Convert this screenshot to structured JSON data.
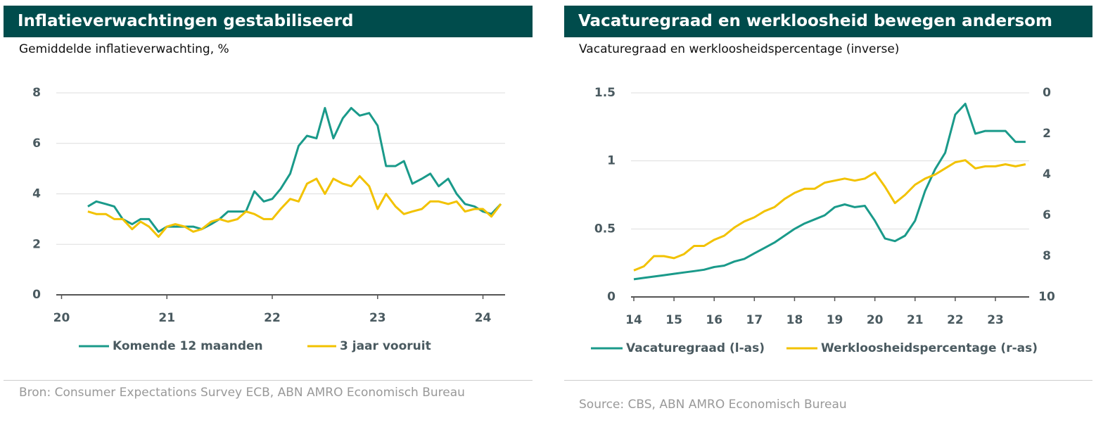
{
  "chart_data": [
    {
      "type": "line",
      "title": "Inflatieverwachtingen gestabiliseerd",
      "subtitle": "Gemiddelde inflatieverwachting, %",
      "source": "Bron: Consumer Expectations Survey ECB, ABN AMRO Economisch Bureau",
      "x": [
        20.25,
        20.33,
        20.42,
        20.5,
        20.58,
        20.67,
        20.75,
        20.83,
        20.92,
        21,
        21.08,
        21.17,
        21.25,
        21.33,
        21.42,
        21.5,
        21.58,
        21.67,
        21.75,
        21.83,
        21.92,
        22,
        22.08,
        22.17,
        22.25,
        22.33,
        22.42,
        22.5,
        22.58,
        22.67,
        22.75,
        22.83,
        22.92,
        23,
        23.08,
        23.17,
        23.25,
        23.33,
        23.42,
        23.5,
        23.58,
        23.67,
        23.75,
        23.83,
        23.92,
        24,
        24.08,
        24.17
      ],
      "xlim": [
        19.95,
        24.21
      ],
      "xticks": [
        20,
        21,
        22,
        23,
        24
      ],
      "ylim": [
        0,
        8
      ],
      "yticks": [
        0,
        2,
        4,
        6,
        8
      ],
      "grid": true,
      "series": [
        {
          "name": "Komende 12 maanden",
          "color": "#1a9a8a",
          "values": [
            3.5,
            3.7,
            3.6,
            3.5,
            3.0,
            2.8,
            3.0,
            3.0,
            2.5,
            2.7,
            2.7,
            2.7,
            2.7,
            2.6,
            2.8,
            3.0,
            3.3,
            3.3,
            3.3,
            4.1,
            3.7,
            3.8,
            4.2,
            4.8,
            5.9,
            6.3,
            6.2,
            7.4,
            6.2,
            7.0,
            7.4,
            7.1,
            7.2,
            6.7,
            5.1,
            5.1,
            5.3,
            4.4,
            4.6,
            4.8,
            4.3,
            4.6,
            4.0,
            3.6,
            3.5,
            3.3,
            3.2,
            3.6
          ]
        },
        {
          "name": "3 jaar vooruit",
          "color": "#f2c200",
          "values": [
            3.3,
            3.2,
            3.2,
            3.0,
            3.0,
            2.6,
            2.9,
            2.7,
            2.3,
            2.7,
            2.8,
            2.7,
            2.5,
            2.6,
            2.9,
            3.0,
            2.9,
            3.0,
            3.3,
            3.2,
            3.0,
            3.0,
            3.4,
            3.8,
            3.7,
            4.4,
            4.6,
            4.0,
            4.6,
            4.4,
            4.3,
            4.7,
            4.3,
            3.4,
            4.0,
            3.5,
            3.2,
            3.3,
            3.4,
            3.7,
            3.7,
            3.6,
            3.7,
            3.3,
            3.4,
            3.4,
            3.1,
            3.6
          ]
        }
      ]
    },
    {
      "type": "line",
      "title": "Vacaturegraad en werkloosheid bewegen andersom",
      "subtitle": "Vacaturegraad en werkloosheidspercentage (inverse)",
      "source": "Source: CBS, ABN AMRO Economisch Bureau",
      "x": [
        14,
        14.25,
        14.5,
        14.75,
        15,
        15.25,
        15.5,
        15.75,
        16,
        16.25,
        16.5,
        16.75,
        17,
        17.25,
        17.5,
        17.75,
        18,
        18.25,
        18.5,
        18.75,
        19,
        19.25,
        19.5,
        19.75,
        20,
        20.25,
        20.5,
        20.75,
        21,
        21.25,
        21.5,
        21.75,
        22,
        22.25,
        22.5,
        22.75,
        23,
        23.25,
        23.5,
        23.75
      ],
      "xlim": [
        13.93,
        23.84
      ],
      "xticks": [
        14,
        15,
        16,
        17,
        18,
        19,
        20,
        21,
        22,
        23
      ],
      "ylim": [
        0,
        1.5
      ],
      "yticks": [
        0,
        0.5,
        1,
        1.5
      ],
      "grid": true,
      "y2lim": [
        10,
        0
      ],
      "y2ticks": [
        0,
        2,
        4,
        6,
        8,
        10
      ],
      "series": [
        {
          "name": "Vacaturegraad (l-as)",
          "color": "#1a9a8a",
          "values": [
            0.13,
            0.14,
            0.15,
            0.16,
            0.17,
            0.18,
            0.19,
            0.2,
            0.22,
            0.23,
            0.26,
            0.28,
            0.32,
            0.36,
            0.4,
            0.45,
            0.5,
            0.54,
            0.57,
            0.6,
            0.66,
            0.68,
            0.66,
            0.67,
            0.56,
            0.43,
            0.41,
            0.45,
            0.56,
            0.78,
            0.94,
            1.06,
            1.34,
            1.42,
            1.2,
            1.22,
            1.22,
            1.22,
            1.14,
            1.14
          ]
        },
        {
          "name": "Werkloosheidspercentage (r-as)",
          "color": "#f2c200",
          "axis": "y2",
          "values": [
            8.7,
            8.5,
            8.0,
            8.0,
            8.1,
            7.9,
            7.5,
            7.5,
            7.2,
            7.0,
            6.6,
            6.3,
            6.1,
            5.8,
            5.6,
            5.2,
            4.9,
            4.7,
            4.7,
            4.4,
            4.3,
            4.2,
            4.3,
            4.2,
            3.9,
            4.6,
            5.4,
            5.0,
            4.5,
            4.2,
            4.0,
            3.7,
            3.4,
            3.3,
            3.7,
            3.6,
            3.6,
            3.5,
            3.6,
            3.5
          ]
        }
      ]
    }
  ]
}
